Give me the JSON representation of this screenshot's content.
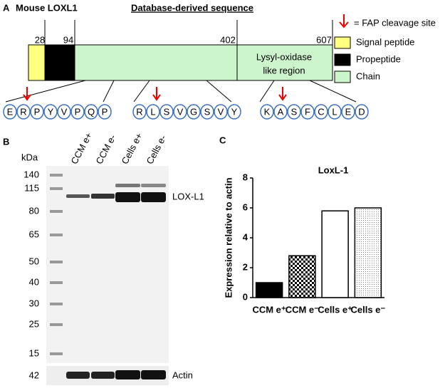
{
  "panel_a": {
    "label": "A",
    "title": "Mouse LOXL1",
    "heading": "Database-derived sequence",
    "positions": [
      28,
      94,
      402,
      607
    ],
    "region_label": [
      "Lysyl-oxidase",
      "like region"
    ],
    "legend": {
      "cleavage": "= FAP cleavage site",
      "items": [
        "Signal peptide",
        "Propeptide",
        "Chain"
      ]
    },
    "sequences": [
      [
        "E",
        "R",
        "P",
        "Y",
        "V",
        "P",
        "Q",
        "P"
      ],
      [
        "R",
        "L",
        "S",
        "V",
        "G",
        "S",
        "V",
        "Y"
      ],
      [
        "K",
        "A",
        "S",
        "F",
        "C",
        "L",
        "E",
        "D"
      ]
    ]
  },
  "panel_b": {
    "label": "B",
    "unit": "kDa",
    "lanes": [
      "CCM e+",
      "CCM e-",
      "Cells e+",
      "Cells e-"
    ],
    "ladder": [
      140,
      115,
      80,
      65,
      50,
      40,
      30,
      25,
      15
    ],
    "actin_size": 42,
    "band_label": "LOX-L1",
    "actin_label": "Actin"
  },
  "chart_data": {
    "type": "bar",
    "panel_label": "C",
    "title": "LoxL-1",
    "ylabel": "Expression relative to actin",
    "categories": [
      "CCM e⁺",
      "CCM e⁻",
      "Cells e⁺",
      "Cells e⁻"
    ],
    "values": [
      1,
      2.8,
      5.8,
      6.0
    ],
    "patterns": [
      "solid",
      "checker",
      "none",
      "dots"
    ],
    "color": "#000000",
    "ylim": [
      0,
      8
    ],
    "yticks": [
      0,
      2,
      4,
      6,
      8
    ]
  }
}
